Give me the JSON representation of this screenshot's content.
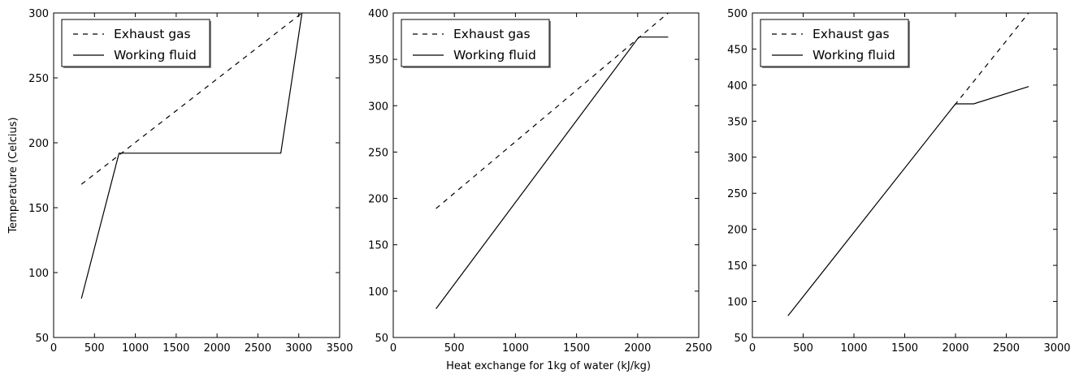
{
  "figure": {
    "xlabel": "Heat exchange for 1kg of water (kJ/kg)",
    "ylabel": "Temperature (Celcius)"
  },
  "chart_data": [
    {
      "type": "line",
      "xlabel": "",
      "ylabel": "Temperature (Celcius)",
      "xlim": [
        0,
        3500
      ],
      "ylim": [
        50,
        300
      ],
      "xticks": [
        0,
        500,
        1000,
        1500,
        2000,
        2500,
        3000,
        3500
      ],
      "yticks": [
        50,
        100,
        150,
        200,
        250,
        300
      ],
      "grid": false,
      "legend": "top-left",
      "series": [
        {
          "name": "Exhaust gas",
          "style": "dashed",
          "color": "#000000",
          "x": [
            340,
            3040
          ],
          "y": [
            168,
            300
          ]
        },
        {
          "name": "Working fluid",
          "style": "solid",
          "color": "#000000",
          "x": [
            340,
            800,
            2780,
            3040
          ],
          "y": [
            80,
            192,
            192,
            300
          ]
        }
      ]
    },
    {
      "type": "line",
      "xlabel": "Heat exchange for 1kg of water (kJ/kg)",
      "ylabel": "",
      "xlim": [
        0,
        2500
      ],
      "ylim": [
        50,
        400
      ],
      "xticks": [
        0,
        500,
        1000,
        1500,
        2000,
        2500
      ],
      "yticks": [
        50,
        100,
        150,
        200,
        250,
        300,
        350,
        400
      ],
      "grid": false,
      "legend": "top-left",
      "series": [
        {
          "name": "Exhaust gas",
          "style": "dashed",
          "color": "#000000",
          "x": [
            350,
            2250
          ],
          "y": [
            189,
            400
          ]
        },
        {
          "name": "Working fluid",
          "style": "solid",
          "color": "#000000",
          "x": [
            350,
            2010,
            2250
          ],
          "y": [
            81,
            374,
            374
          ]
        }
      ]
    },
    {
      "type": "line",
      "xlabel": "",
      "ylabel": "",
      "xlim": [
        0,
        3000
      ],
      "ylim": [
        50,
        500
      ],
      "xticks": [
        0,
        500,
        1000,
        1500,
        2000,
        2500,
        3000
      ],
      "yticks": [
        50,
        100,
        150,
        200,
        250,
        300,
        350,
        400,
        450,
        500
      ],
      "grid": false,
      "legend": "top-left",
      "series": [
        {
          "name": "Exhaust gas",
          "style": "dashed",
          "color": "#000000",
          "x": [
            1990,
            2720
          ],
          "y": [
            372,
            500
          ]
        },
        {
          "name": "Working fluid",
          "style": "solid",
          "color": "#000000",
          "x": [
            350,
            2000,
            2180,
            2720
          ],
          "y": [
            80,
            374,
            374,
            398
          ]
        }
      ]
    }
  ]
}
